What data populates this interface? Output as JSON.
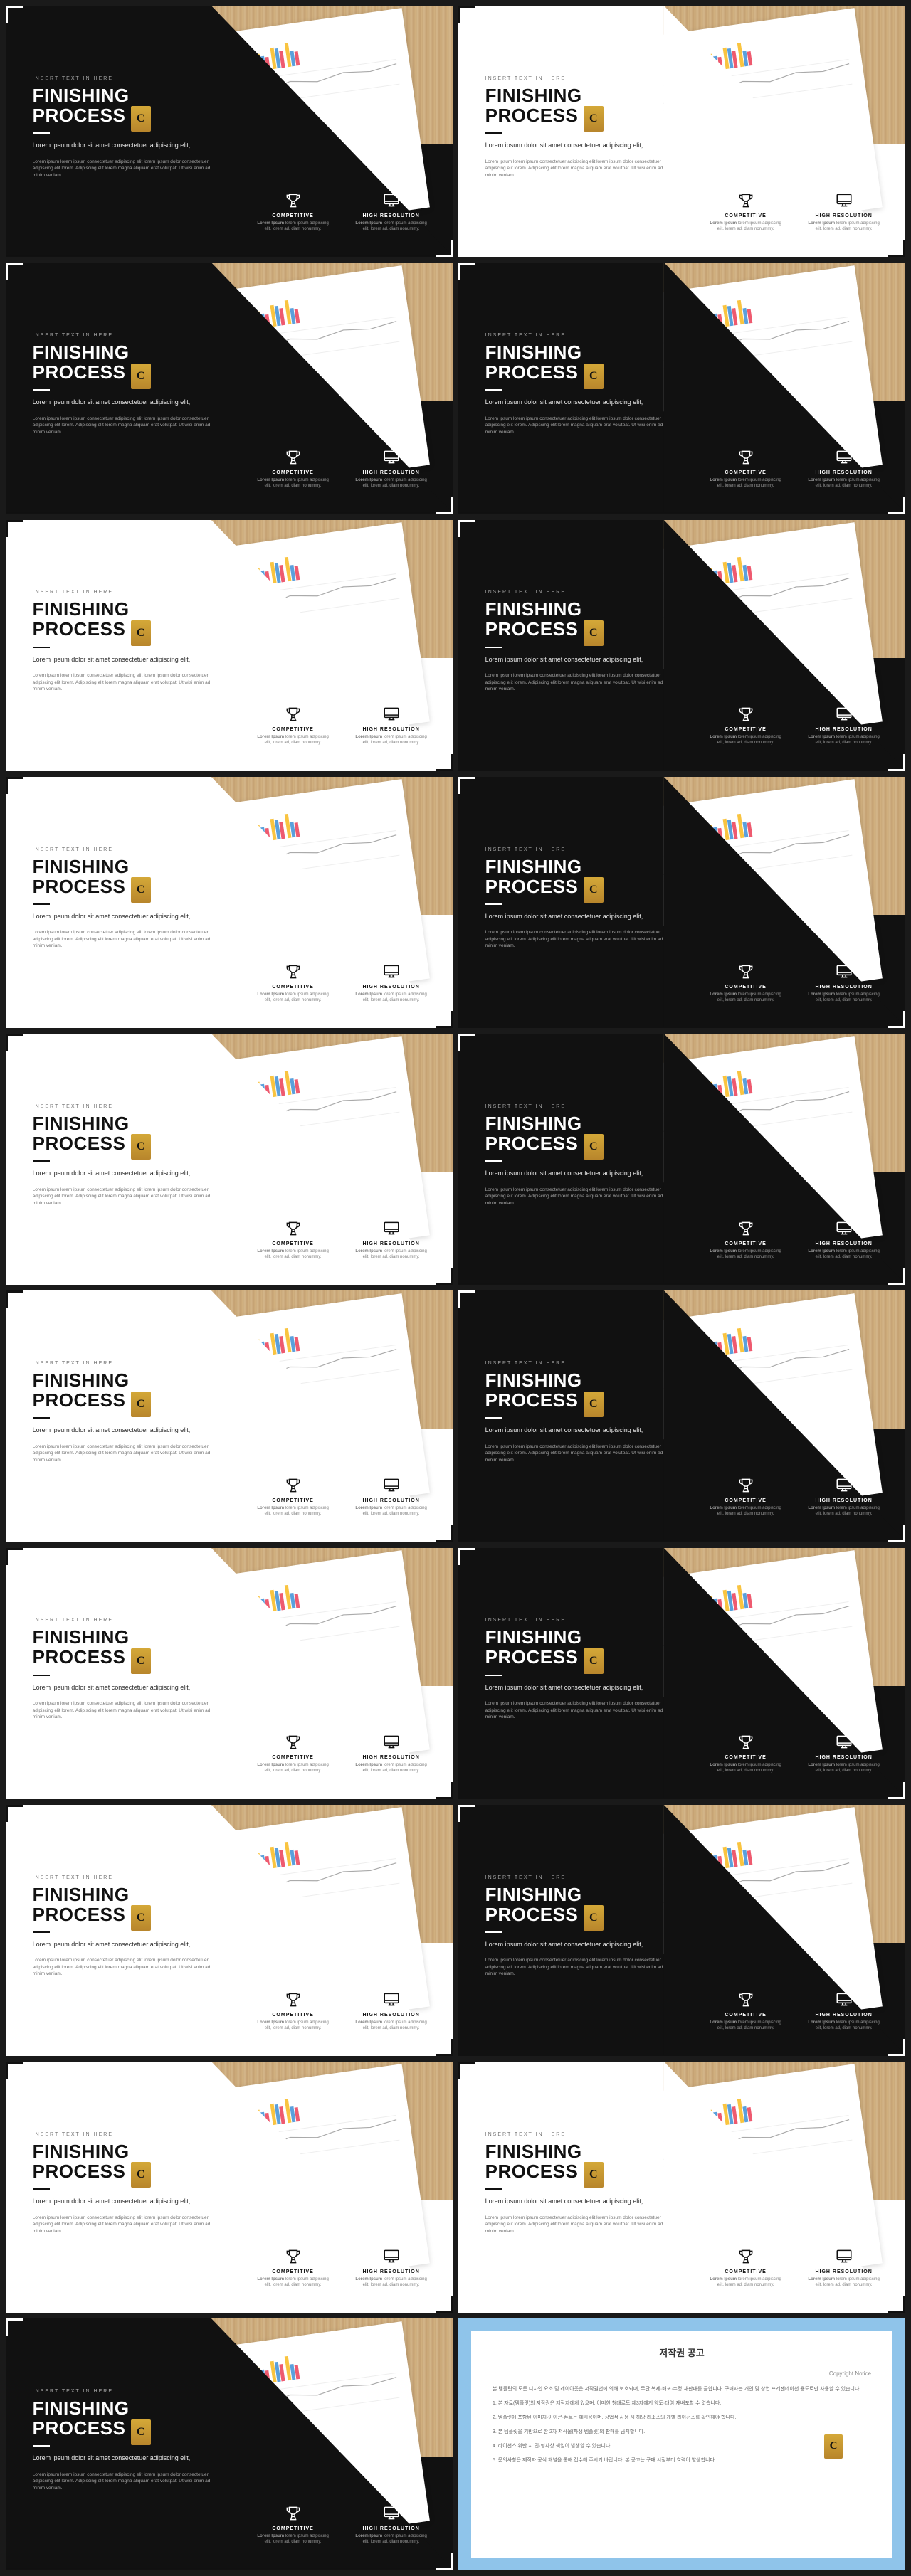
{
  "slide_template": {
    "eyebrow": "INSERT TEXT IN HERE",
    "title_line1": "FINISHING",
    "title_line2": "PROCESS",
    "logo_letter": "C",
    "lead": "Lorem ipsum dolor sit amet consectetuer adipiscing elit,",
    "body": "Lorem ipsum lorem ipsum consectetuer adipiscing elit lorem ipsum dolor consectetuer adipiscing elit lorem. Adipiscing elit lorem magna aliquam erat volutpat. Ut wisi enim ad minim veniam.",
    "features": [
      {
        "icon": "trophy",
        "title": "COMPETITIVE",
        "sub_bold": "Lorem Ipsum",
        "sub": " lorem ipsum adipiscing elit, lorem ad, diam nonummy."
      },
      {
        "icon": "monitor",
        "title": "HIGH RESOLUTION",
        "sub_bold": "Lorem Ipsum",
        "sub": " lorem ipsum adipiscing elit, lorem ad, diam nonummy."
      }
    ]
  },
  "chart": {
    "bar_colors": {
      "a": "#f9c440",
      "b": "#5aa0dc",
      "c": "#ee5a6f"
    },
    "bars": [
      [
        22,
        18,
        12
      ],
      [
        28,
        20,
        15
      ],
      [
        24,
        16,
        18
      ],
      [
        30,
        22,
        14
      ],
      [
        26,
        24,
        20
      ],
      [
        32,
        18,
        16
      ],
      [
        28,
        26,
        22
      ],
      [
        24,
        20,
        18
      ],
      [
        30,
        28,
        24
      ],
      [
        34,
        22,
        20
      ]
    ],
    "line_points": "0,30 30,22 60,26 90,14 120,20 150,10 180,16 210,8 240,12 270,6",
    "line_color": "#aaa"
  },
  "variants": [
    {
      "theme": "black"
    },
    {
      "theme": "white"
    },
    {
      "theme": "black"
    },
    {
      "theme": "black"
    },
    {
      "theme": "white"
    },
    {
      "theme": "black"
    },
    {
      "theme": "white"
    },
    {
      "theme": "black"
    },
    {
      "theme": "white"
    },
    {
      "theme": "black"
    },
    {
      "theme": "white"
    },
    {
      "theme": "black"
    },
    {
      "theme": "white"
    },
    {
      "theme": "black"
    },
    {
      "theme": "white"
    },
    {
      "theme": "black"
    },
    {
      "theme": "white"
    },
    {
      "theme": "white"
    },
    {
      "theme": "black"
    }
  ],
  "notice": {
    "title": "저작권 공고",
    "subtitle": "Copyright Notice",
    "logo_letter": "C",
    "paragraphs": [
      "본 템플릿의 모든 디자인 요소 및 레이아웃은 저작권법에 의해 보호되며, 무단 복제·배포·수정·재판매를 금합니다. 구매자는 개인 및 상업 프레젠테이션 용도로만 사용할 수 있습니다.",
      "1. 본 자료(템플릿)의 저작권은 제작자에게 있으며, 어떠한 형태로도 제3자에게 양도·대여·재배포할 수 없습니다.",
      "2. 템플릿에 포함된 이미지·아이콘·폰트는 예시용이며, 상업적 사용 시 해당 리소스의 개별 라이선스를 확인해야 합니다.",
      "3. 본 템플릿을 기반으로 한 2차 저작물(파생 템플릿)의 판매를 금지합니다.",
      "4. 라이선스 위반 시 민·형사상 책임이 발생할 수 있습니다.",
      "5. 문의사항은 제작자 공식 채널을 통해 접수해 주시기 바랍니다. 본 공고는 구매 시점부터 효력이 발생합니다."
    ],
    "border_color": "#8fc4ea"
  }
}
